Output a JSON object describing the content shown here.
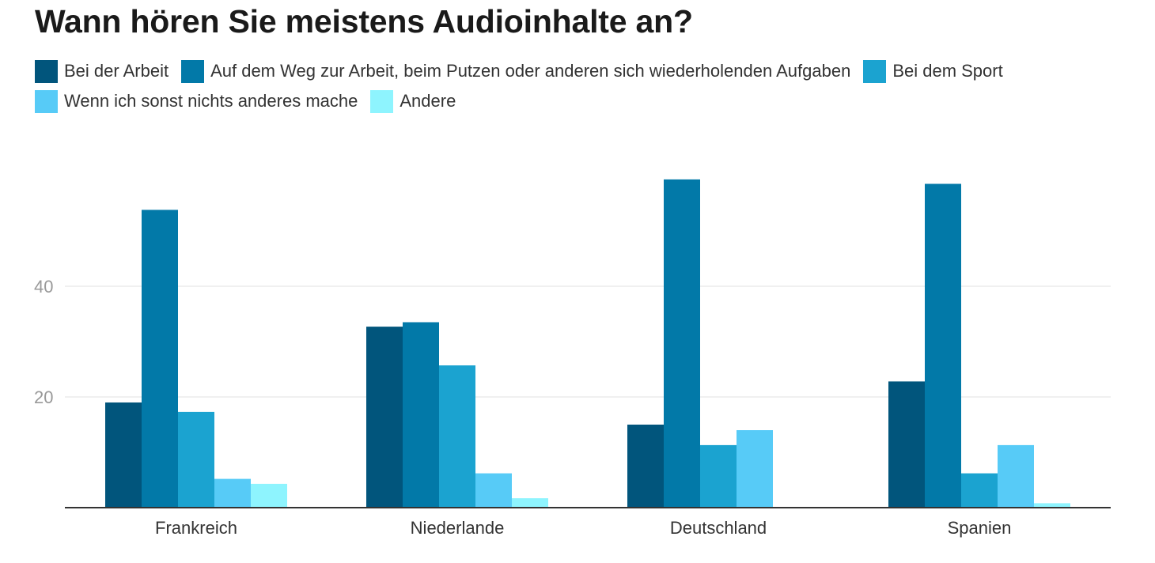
{
  "chart_data": {
    "type": "bar",
    "title": "Wann hören Sie meistens Audioinhalte an?",
    "categories": [
      "Frankreich",
      "Niederlande",
      "Deutschland",
      "Spanien"
    ],
    "series": [
      {
        "name": "Bei der Arbeit",
        "color": "#01557c",
        "values": [
          19,
          32.7,
          15,
          22.8
        ]
      },
      {
        "name": "Auf dem Weg zur Arbeit, beim Putzen oder anderen sich wiederholenden Aufgaben",
        "color": "#0279a8",
        "values": [
          53.8,
          33.5,
          59.3,
          58.5
        ]
      },
      {
        "name": "Bei dem Sport",
        "color": "#1ba3d0",
        "values": [
          17.3,
          25.7,
          11.3,
          6.2
        ]
      },
      {
        "name": "Wenn ich sonst nichts anderes mache",
        "color": "#57cbf7",
        "values": [
          5.2,
          6.2,
          14,
          11.3
        ]
      },
      {
        "name": "Andere",
        "color": "#8ef4fe",
        "values": [
          4.3,
          1.7,
          0,
          0.8
        ]
      }
    ],
    "yticks": [
      20,
      40
    ],
    "ylim": [
      0,
      60
    ],
    "grid": true,
    "legend": "top-left",
    "xlabel": "",
    "ylabel": ""
  }
}
